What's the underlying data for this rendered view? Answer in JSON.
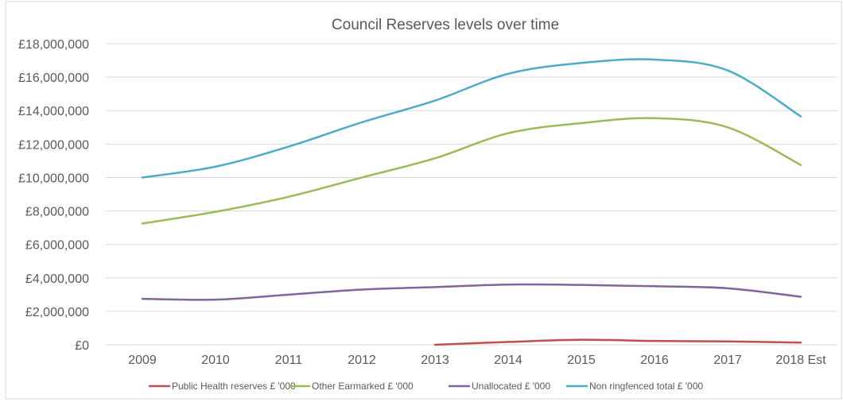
{
  "chart_data": {
    "type": "line",
    "title": "Council Reserves levels over time",
    "xlabel": "",
    "ylabel": "",
    "categories": [
      "2009",
      "2010",
      "2011",
      "2012",
      "2013",
      "2014",
      "2015",
      "2016",
      "2017",
      "2018 Est"
    ],
    "y_ticks": [
      "£0",
      "£2,000,000",
      "£4,000,000",
      "£6,000,000",
      "£8,000,000",
      "£10,000,000",
      "£12,000,000",
      "£14,000,000",
      "£16,000,000",
      "£18,000,000"
    ],
    "ylim": [
      0,
      18000000
    ],
    "grid": true,
    "legend_position": "bottom",
    "series": [
      {
        "name": "Public Health reserves £ '000",
        "color": "#c0504d",
        "values": [
          null,
          null,
          null,
          null,
          0,
          170000,
          300000,
          230000,
          200000,
          130000
        ]
      },
      {
        "name": "Other Earmarked £ '000",
        "color": "#9bbb59",
        "values": [
          7250000,
          7950000,
          8850000,
          10000000,
          11150000,
          12650000,
          13250000,
          13550000,
          13000000,
          10750000
        ]
      },
      {
        "name": "Unallocated £ '000",
        "color": "#8064a2",
        "values": [
          2750000,
          2700000,
          3000000,
          3300000,
          3450000,
          3600000,
          3580000,
          3500000,
          3380000,
          2870000
        ]
      },
      {
        "name": "Non ringfenced total £ '000",
        "color": "#4bacc6",
        "values": [
          10000000,
          10650000,
          11850000,
          13300000,
          14600000,
          16200000,
          16850000,
          17050000,
          16400000,
          13650000
        ]
      }
    ]
  }
}
